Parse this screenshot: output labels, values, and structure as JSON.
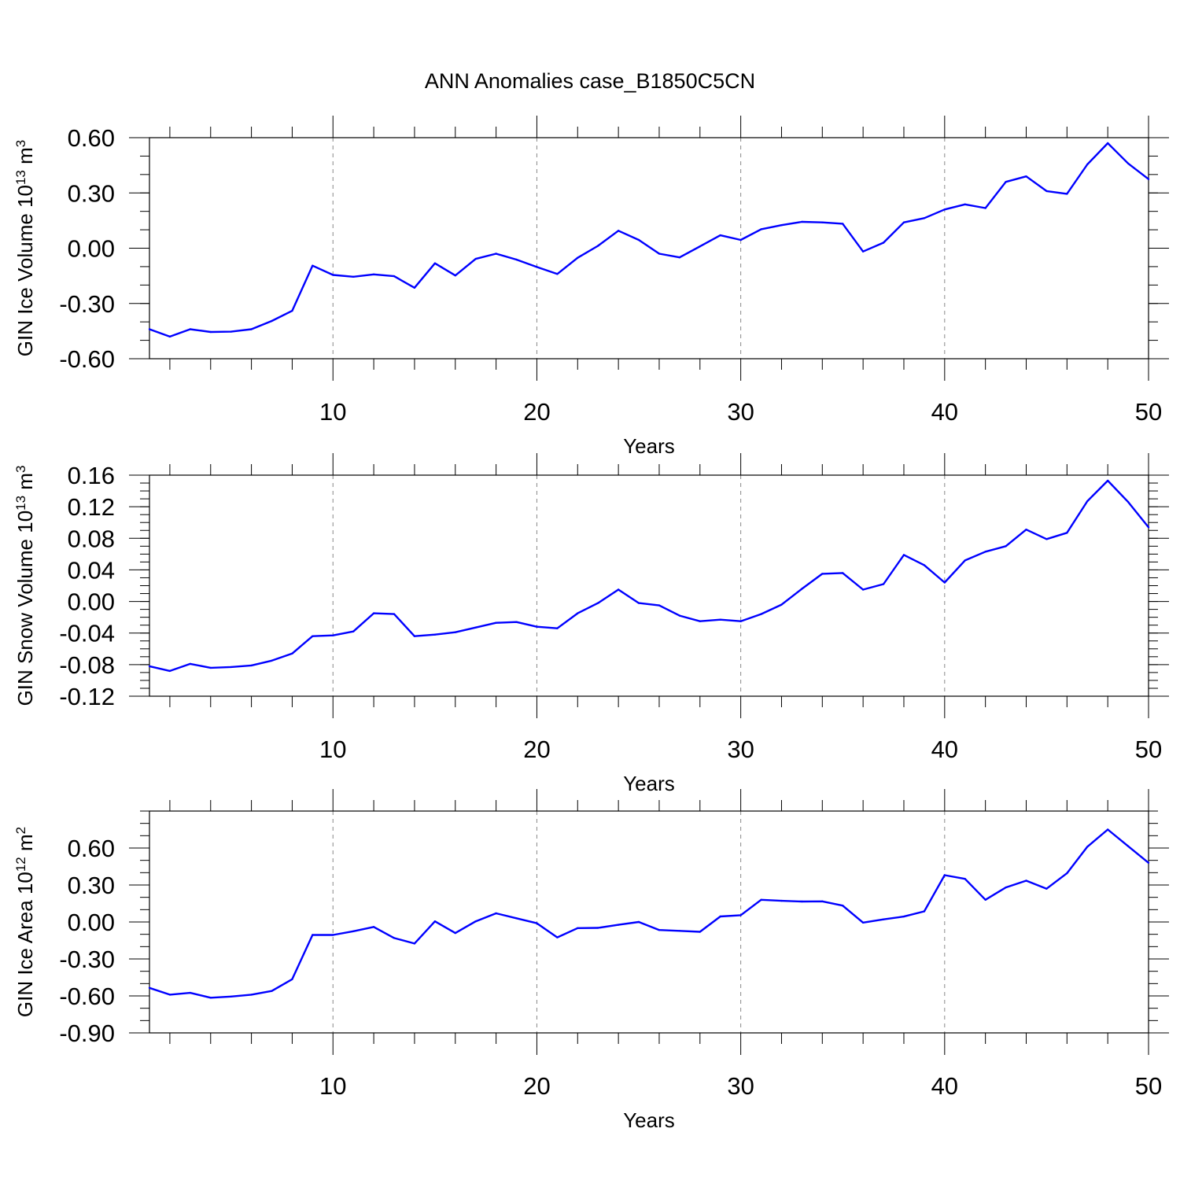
{
  "title": "ANN Anomalies case_B1850C5CN",
  "chart_data": [
    {
      "type": "line",
      "ylabel": {
        "main": "GIN Ice Volume 10",
        "exp": "13",
        "unit": " m",
        "unit_exp": "3"
      },
      "xlabel": "Years",
      "xlim": [
        1,
        50
      ],
      "ylim": [
        -0.6,
        0.6
      ],
      "x_ticks": [
        "10",
        "20",
        "30",
        "40",
        "50"
      ],
      "y_ticks": [
        "0.60",
        "0.30",
        "0.00",
        "-0.30",
        "-0.60"
      ],
      "grid": "vertical dashed at labeled x ticks",
      "series": [
        {
          "color": "#0000ff",
          "x": [
            1,
            2,
            3,
            4,
            5,
            6,
            7,
            8,
            9,
            10,
            11,
            12,
            13,
            14,
            15,
            16,
            17,
            18,
            19,
            20,
            21,
            22,
            23,
            24,
            25,
            26,
            27,
            28,
            29,
            30,
            31,
            32,
            33,
            34,
            35,
            36,
            37,
            38,
            39,
            40,
            41,
            42,
            43,
            44,
            45,
            46,
            47,
            48,
            49,
            50
          ],
          "y": [
            -0.44,
            -0.48,
            -0.44,
            -0.455,
            -0.453,
            -0.44,
            -0.395,
            -0.34,
            -0.095,
            -0.145,
            -0.155,
            -0.142,
            -0.152,
            -0.215,
            -0.082,
            -0.148,
            -0.058,
            -0.03,
            -0.062,
            -0.102,
            -0.14,
            -0.052,
            0.013,
            0.095,
            0.045,
            -0.03,
            -0.05,
            0.01,
            0.07,
            0.045,
            0.103,
            0.125,
            0.143,
            0.14,
            0.133,
            -0.018,
            0.03,
            0.14,
            0.163,
            0.21,
            0.238,
            0.218,
            0.36,
            0.39,
            0.31,
            0.295,
            0.455,
            0.57,
            0.46,
            0.375
          ]
        }
      ]
    },
    {
      "type": "line",
      "ylabel": {
        "main": "GIN Snow Volume 10",
        "exp": "13",
        "unit": " m",
        "unit_exp": "3"
      },
      "xlabel": "Years",
      "xlim": [
        1,
        50
      ],
      "ylim": [
        -0.12,
        0.16
      ],
      "x_ticks": [
        "10",
        "20",
        "30",
        "40",
        "50"
      ],
      "y_ticks": [
        "0.16",
        "0.12",
        "0.08",
        "0.04",
        "0.00",
        "-0.04",
        "-0.08",
        "-0.12"
      ],
      "grid": "vertical dashed at labeled x ticks",
      "series": [
        {
          "color": "#0000ff",
          "x": [
            1,
            2,
            3,
            4,
            5,
            6,
            7,
            8,
            9,
            10,
            11,
            12,
            13,
            14,
            15,
            16,
            17,
            18,
            19,
            20,
            21,
            22,
            23,
            24,
            25,
            26,
            27,
            28,
            29,
            30,
            31,
            32,
            33,
            34,
            35,
            36,
            37,
            38,
            39,
            40,
            41,
            42,
            43,
            44,
            45,
            46,
            47,
            48,
            49,
            50
          ],
          "y": [
            -0.082,
            -0.088,
            -0.079,
            -0.084,
            -0.083,
            -0.081,
            -0.075,
            -0.066,
            -0.044,
            -0.043,
            -0.038,
            -0.015,
            -0.016,
            -0.044,
            -0.042,
            -0.039,
            -0.033,
            -0.027,
            -0.026,
            -0.032,
            -0.034,
            -0.015,
            -0.002,
            0.015,
            -0.002,
            -0.005,
            -0.018,
            -0.025,
            -0.023,
            -0.025,
            -0.016,
            -0.004,
            0.016,
            0.035,
            0.036,
            0.015,
            0.022,
            0.059,
            0.046,
            0.024,
            0.052,
            0.063,
            0.07,
            0.091,
            0.079,
            0.087,
            0.127,
            0.153,
            0.126,
            0.094
          ]
        }
      ]
    },
    {
      "type": "line",
      "ylabel": {
        "main": "GIN Ice Area 10",
        "exp": "12",
        "unit": " m",
        "unit_exp": "2"
      },
      "xlabel": "Years",
      "xlim": [
        1,
        50
      ],
      "ylim": [
        -0.9,
        0.9
      ],
      "x_ticks": [
        "10",
        "20",
        "30",
        "40",
        "50"
      ],
      "y_ticks": [
        "0.60",
        "0.30",
        "0.00",
        "-0.30",
        "-0.60",
        "-0.90"
      ],
      "grid": "vertical dashed at labeled x ticks",
      "series": [
        {
          "color": "#0000ff",
          "x": [
            1,
            2,
            3,
            4,
            5,
            6,
            7,
            8,
            9,
            10,
            11,
            12,
            13,
            14,
            15,
            16,
            17,
            18,
            19,
            20,
            21,
            22,
            23,
            24,
            25,
            26,
            27,
            28,
            29,
            30,
            31,
            32,
            33,
            34,
            35,
            36,
            37,
            38,
            39,
            40,
            41,
            42,
            43,
            44,
            45,
            46,
            47,
            48,
            49,
            50
          ],
          "y": [
            -0.535,
            -0.59,
            -0.575,
            -0.615,
            -0.605,
            -0.59,
            -0.56,
            -0.465,
            -0.105,
            -0.105,
            -0.075,
            -0.04,
            -0.13,
            -0.175,
            0.005,
            -0.09,
            0.005,
            0.07,
            0.03,
            -0.01,
            -0.125,
            -0.05,
            -0.048,
            -0.023,
            0.0,
            -0.065,
            -0.072,
            -0.08,
            0.045,
            0.055,
            0.18,
            0.172,
            0.166,
            0.167,
            0.133,
            -0.005,
            0.021,
            0.044,
            0.086,
            0.38,
            0.35,
            0.18,
            0.28,
            0.335,
            0.27,
            0.395,
            0.61,
            0.75,
            0.615,
            0.48
          ]
        }
      ]
    }
  ]
}
